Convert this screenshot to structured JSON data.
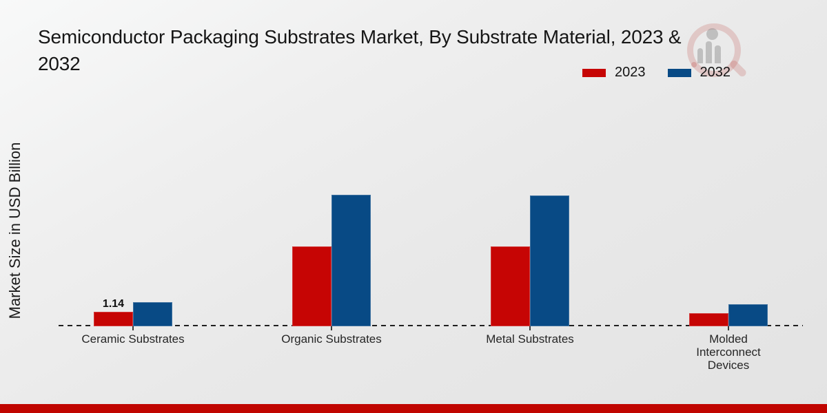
{
  "page": {
    "footer_color": "#c00500",
    "background_top": "#f8f9f9",
    "background_bottom": "#e3e3e3"
  },
  "header": {
    "title": "Semiconductor Packaging Substrates Market, By Substrate Material, 2023 & 2032",
    "title_lines": {
      "line1": "Semiconductor Packaging Substrates Market, By Substrate Material, 2023 &",
      "line2": "2032"
    }
  },
  "legend": {
    "items": [
      {
        "label": "2023",
        "color": "#c60504"
      },
      {
        "label": "2032",
        "color": "#084a85"
      }
    ]
  },
  "y_axis": {
    "label": "Market Size in USD Billion"
  },
  "watermark": {
    "icon": "magnifier-bar-chart-logo"
  },
  "chart_data": {
    "type": "bar",
    "title": "Semiconductor Packaging Substrates Market, By Substrate Material, 2023 & 2032",
    "xlabel": "",
    "ylabel": "Market Size in USD Billion",
    "categories": [
      "Ceramic Substrates",
      "Organic Substrates",
      "Metal Substrates",
      "Molded Interconnect Devices"
    ],
    "series": [
      {
        "name": "2023",
        "color": "#c60504",
        "values": [
          1.14,
          6.3,
          6.3,
          1.05
        ]
      },
      {
        "name": "2032",
        "color": "#084a85",
        "values": [
          1.9,
          10.4,
          10.35,
          1.75
        ]
      }
    ],
    "data_labels": [
      {
        "series": "2023",
        "category": "Ceramic Substrates",
        "text": "1.14"
      }
    ],
    "ylim": [
      0,
      11.5
    ],
    "grid": false,
    "axis_line_style": "dashed",
    "legend_position": "top-right"
  }
}
